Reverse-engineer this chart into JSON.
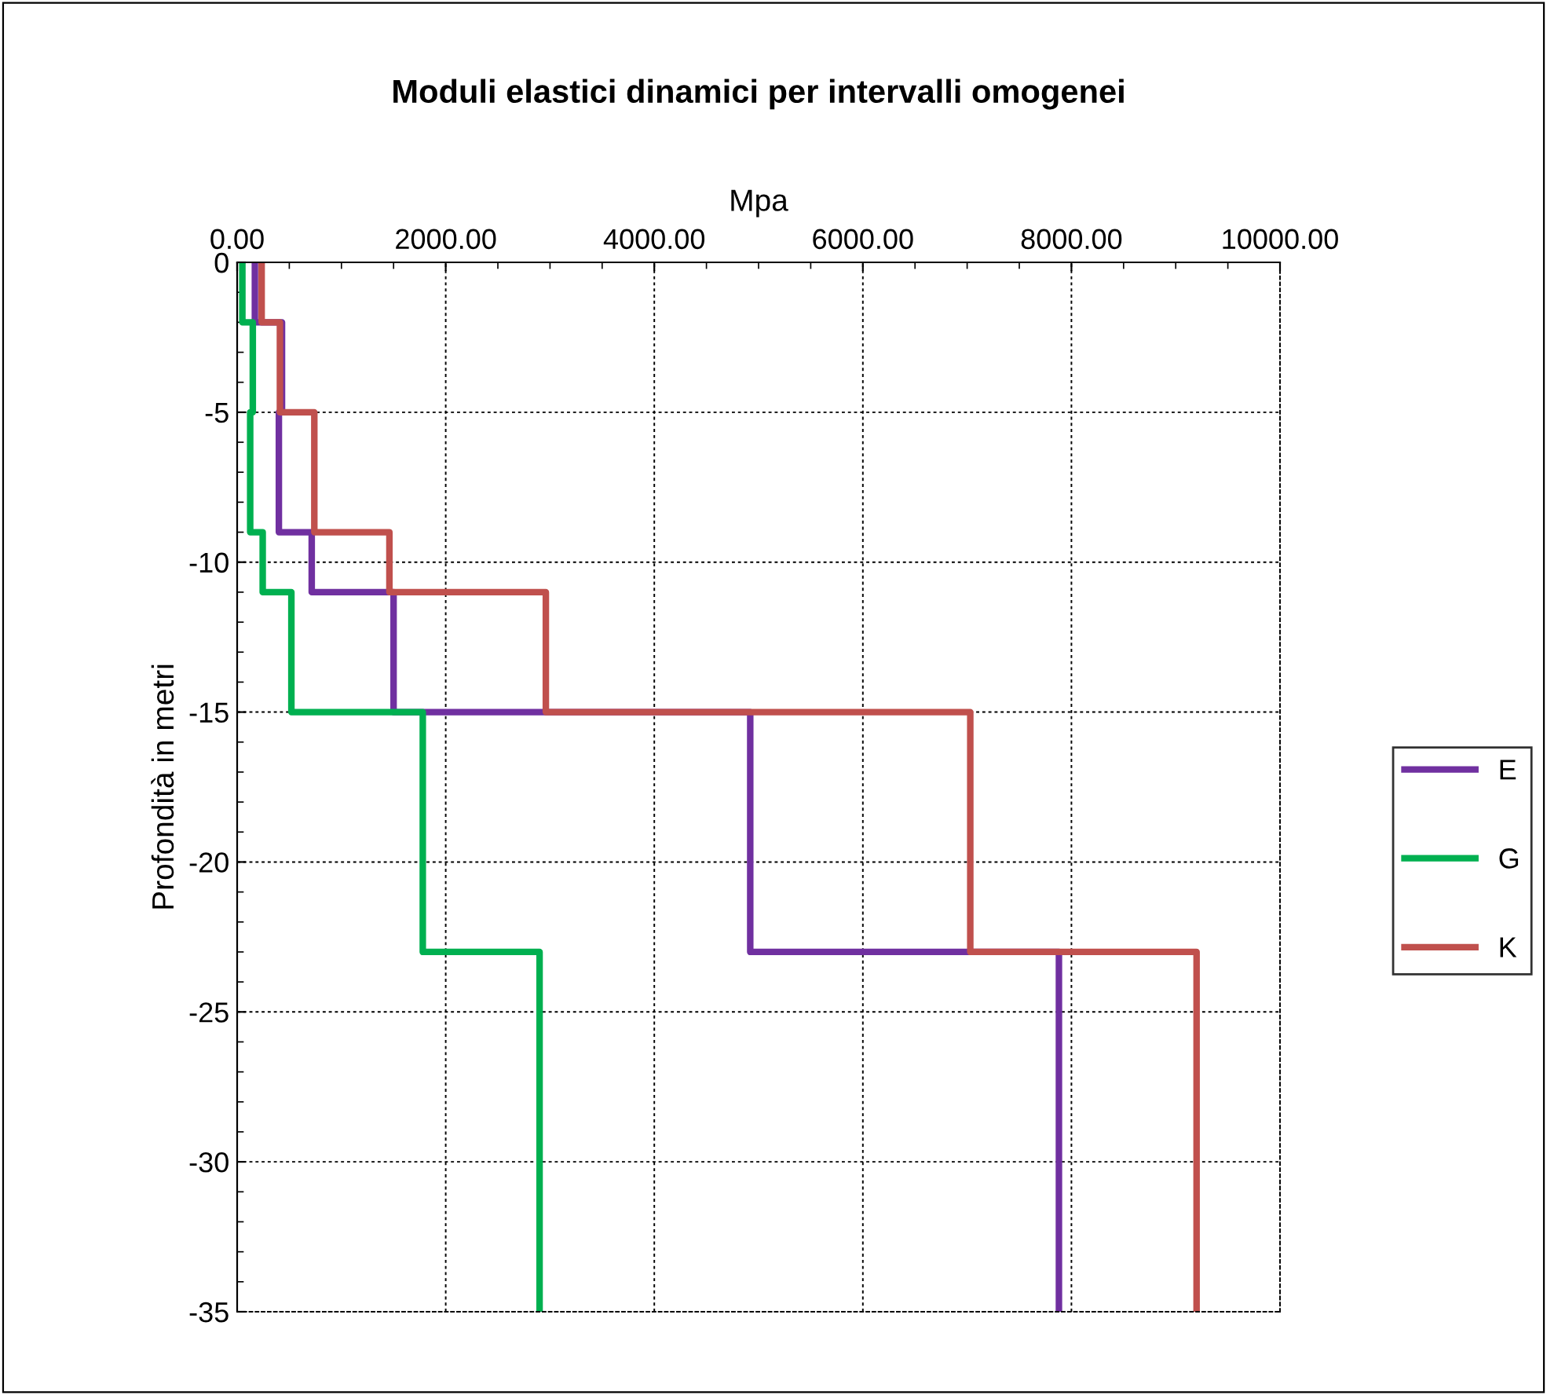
{
  "chart_data": {
    "type": "line",
    "title": "Moduli elastici dinamici per intervalli omogenei",
    "xlabel": "Mpa",
    "ylabel": "Profondità in metri",
    "xlim": [
      0,
      10000
    ],
    "xticks": [
      {
        "value": 0,
        "label": "0.00"
      },
      {
        "value": 2000,
        "label": "2000.00"
      },
      {
        "value": 4000,
        "label": "4000.00"
      },
      {
        "value": 6000,
        "label": "6000.00"
      },
      {
        "value": 8000,
        "label": "8000.00"
      },
      {
        "value": 10000,
        "label": "10000.00"
      }
    ],
    "ylim": [
      -35,
      0
    ],
    "yticks": [
      0,
      -5,
      -10,
      -15,
      -20,
      -25,
      -30,
      -35
    ],
    "grid": true,
    "legend": "right",
    "marker": "none",
    "line_style": "solid",
    "series": [
      {
        "name": "E",
        "color": "#7030a0",
        "x": [
          170,
          170,
          430,
          430,
          400,
          400,
          715,
          715,
          1500,
          1500,
          4920,
          4920,
          7880,
          7880
        ],
        "values": [
          0,
          -2,
          -2,
          -5,
          -5,
          -9,
          -9,
          -11,
          -11,
          -15,
          -15,
          -23,
          -23,
          -35
        ]
      },
      {
        "name": "G",
        "color": "#00b050",
        "x": [
          50,
          50,
          150,
          150,
          125,
          125,
          245,
          245,
          520,
          520,
          1780,
          1780,
          2900,
          2900
        ],
        "values": [
          0,
          -2,
          -2,
          -5,
          -5,
          -9,
          -9,
          -11,
          -11,
          -15,
          -15,
          -23,
          -23,
          -35
        ]
      },
      {
        "name": "K",
        "color": "#c0504d",
        "x": [
          235,
          235,
          410,
          410,
          740,
          740,
          1460,
          1460,
          2960,
          2960,
          7030,
          7030,
          9200,
          9200
        ],
        "values": [
          0,
          -2,
          -2,
          -5,
          -5,
          -9,
          -9,
          -11,
          -11,
          -15,
          -15,
          -23,
          -23,
          -35
        ]
      }
    ]
  }
}
